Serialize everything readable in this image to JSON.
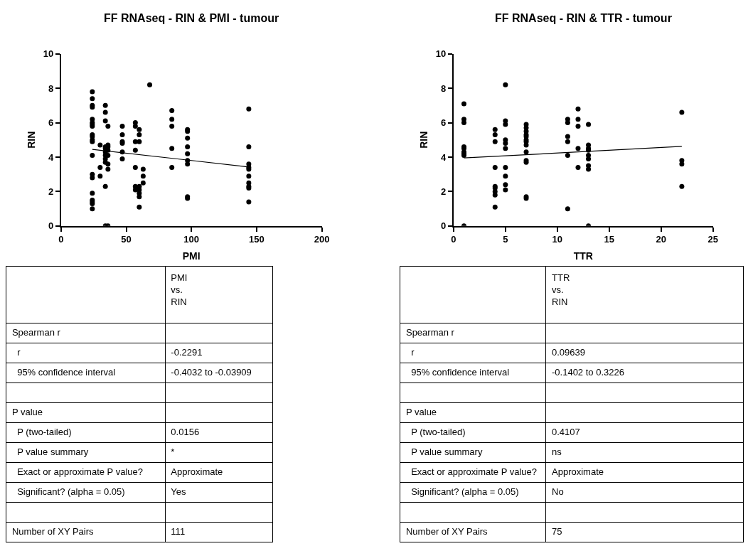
{
  "chart_data": [
    {
      "type": "scatter",
      "title": "FF RNAseq - RIN & PMI - tumour",
      "xlabel": "PMI",
      "ylabel": "RIN",
      "xlim": [
        0,
        200
      ],
      "ylim": [
        0,
        10
      ],
      "xticks": [
        0,
        50,
        100,
        150,
        200
      ],
      "yticks": [
        0,
        2,
        4,
        6,
        8,
        10
      ],
      "grid": false,
      "marker": "circle",
      "series": [
        {
          "color": "#000000",
          "x": [
            24,
            24,
            24,
            24,
            24,
            24,
            24,
            24,
            24,
            24,
            24,
            24,
            24,
            24,
            24,
            24,
            24,
            24,
            24,
            24,
            30,
            30,
            30,
            34,
            34,
            34,
            34,
            34,
            34,
            34,
            34,
            34,
            34,
            34,
            36,
            36,
            36,
            36,
            36,
            36,
            36,
            36,
            47,
            47,
            47,
            47,
            47,
            47,
            57,
            57,
            57,
            57,
            57,
            57,
            57,
            60,
            60,
            60,
            60,
            60,
            60,
            60,
            60,
            63,
            63,
            63,
            68,
            85,
            85,
            85,
            85,
            85,
            97,
            97,
            97,
            97,
            97,
            97,
            97,
            97,
            97,
            144,
            144,
            144,
            144,
            144,
            144,
            144,
            144,
            144,
            144
          ],
          "values": [
            7.8,
            7.4,
            7.0,
            6.9,
            6.2,
            6.0,
            5.9,
            5.8,
            5.3,
            5.2,
            5.0,
            4.9,
            4.1,
            3.0,
            2.8,
            1.9,
            1.5,
            1.4,
            1.3,
            1.0,
            4.7,
            3.4,
            2.9,
            7.0,
            6.6,
            6.1,
            4.6,
            4.5,
            4.3,
            4.1,
            3.9,
            3.7,
            2.3,
            0,
            5.8,
            4.7,
            4.6,
            4.4,
            4.1,
            3.6,
            3.3,
            0,
            5.8,
            5.3,
            4.9,
            4.8,
            4.3,
            3.9,
            6.0,
            5.8,
            4.9,
            4.4,
            3.4,
            2.3,
            2.1,
            5.6,
            5.3,
            4.9,
            2.3,
            2.1,
            1.9,
            1.7,
            1.1,
            3.3,
            2.9,
            2.5,
            8.2,
            6.7,
            6.2,
            5.8,
            4.5,
            3.4,
            5.6,
            5.5,
            5.1,
            4.6,
            4.2,
            3.8,
            3.6,
            1.7,
            1.6,
            6.8,
            4.6,
            3.6,
            3.4,
            3.3,
            2.9,
            2.5,
            2.3,
            2.2,
            1.4
          ]
        },
        {
          "type": "line",
          "color": "#000000",
          "marker": "none",
          "x": [
            24,
            144
          ],
          "values": [
            4.45,
            3.43
          ]
        }
      ],
      "annotations": [
        "PMI\nvs.\nRIN",
        "Spearman r",
        "r",
        "-0.2291",
        "95% confidence interval",
        "-0.4032 to -0.03909",
        "P value",
        "P (two-tailed)",
        "0.0156",
        "P value summary",
        "*",
        "Exact or approximate P value?",
        "Approximate",
        "Significant? (alpha = 0.05)",
        "Yes",
        "Number of XY Pairs",
        "111"
      ]
    },
    {
      "type": "scatter",
      "title": "FF RNAseq - RIN & TTR - tumour",
      "xlabel": "TTR",
      "ylabel": "RIN",
      "xlim": [
        0,
        25
      ],
      "ylim": [
        0,
        10
      ],
      "xticks": [
        0,
        5,
        10,
        15,
        20,
        25
      ],
      "yticks": [
        0,
        2,
        4,
        6,
        8,
        10
      ],
      "grid": false,
      "marker": "circle",
      "series": [
        {
          "color": "#000000",
          "x": [
            1,
            1,
            1,
            1,
            1,
            1,
            1,
            1,
            1,
            4,
            4,
            4,
            4,
            4,
            4,
            4,
            4,
            4,
            5,
            5,
            5,
            5,
            5,
            5,
            5,
            5,
            5,
            5,
            7,
            7,
            7,
            7,
            7,
            7,
            7,
            7,
            7,
            7,
            7,
            7,
            7,
            11,
            11,
            11,
            11,
            11,
            11,
            12,
            12,
            12,
            12,
            12,
            13,
            13,
            13,
            13,
            13,
            13,
            13,
            13,
            13,
            22,
            22,
            22,
            22
          ],
          "values": [
            7.1,
            6.2,
            6.0,
            4.6,
            4.5,
            4.3,
            4.2,
            4.1,
            0,
            5.6,
            5.3,
            4.9,
            3.4,
            2.3,
            2.2,
            2.0,
            1.8,
            1.1,
            8.2,
            6.1,
            5.9,
            5.0,
            4.8,
            4.5,
            3.4,
            2.9,
            2.4,
            2.1,
            5.9,
            5.7,
            5.5,
            5.3,
            5.2,
            5.0,
            4.9,
            4.7,
            4.3,
            3.8,
            3.7,
            1.7,
            1.6,
            6.2,
            6.0,
            5.2,
            4.9,
            4.1,
            1.0,
            6.8,
            6.2,
            5.8,
            4.5,
            3.4,
            5.9,
            4.7,
            4.5,
            4.4,
            4.1,
            3.9,
            3.5,
            3.3,
            0,
            6.6,
            3.8,
            3.6,
            2.3
          ]
        },
        {
          "type": "line",
          "color": "#000000",
          "marker": "none",
          "x": [
            1,
            22
          ],
          "values": [
            3.95,
            4.62
          ]
        }
      ],
      "annotations": [
        "TTR\nvs.\nRIN",
        "Spearman r",
        "r",
        "0.09639",
        "95% confidence interval",
        "-0.1402 to 0.3226",
        "P value",
        "P (two-tailed)",
        "0.4107",
        "P value summary",
        "ns",
        "Exact or approximate P value?",
        "Approximate",
        "Significant? (alpha = 0.05)",
        "No",
        "Number of XY Pairs",
        "75"
      ]
    }
  ]
}
